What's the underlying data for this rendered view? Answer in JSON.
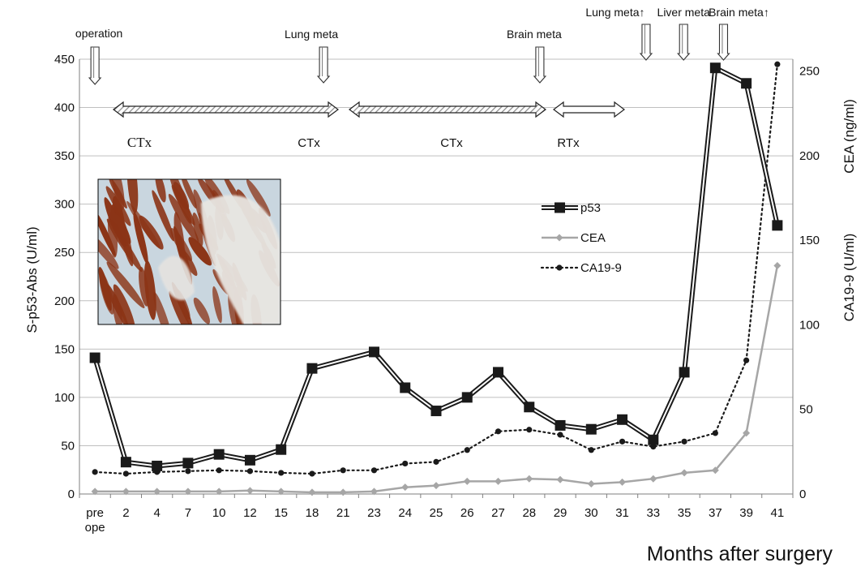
{
  "chart_data": {
    "type": "line",
    "x_label": "Months after surgery",
    "categories": [
      "pre ope",
      "2",
      "4",
      "7",
      "10",
      "12",
      "15",
      "18",
      "21",
      "23",
      "24",
      "25",
      "26",
      "27",
      "28",
      "29",
      "30",
      "31",
      "33",
      "35",
      "37",
      "39",
      "41"
    ],
    "y_left": {
      "label": "S-p53-Abs (U/ml)",
      "range": [
        0,
        450
      ],
      "ticks": [
        "0",
        "50",
        "100",
        "150",
        "200",
        "250",
        "300",
        "350",
        "400",
        "450"
      ]
    },
    "y_right": {
      "labels": [
        "CEA (ng/ml)",
        "CA19-9 (U/ml)"
      ],
      "range": [
        0,
        257
      ],
      "ticks": [
        "0",
        "50",
        "100",
        "150",
        "200",
        "250"
      ]
    },
    "grid": true,
    "legend_position": "right-middle",
    "series": [
      {
        "name": "p53",
        "axis": "left",
        "color": "#1a1a1a",
        "values": [
          141,
          33,
          29,
          32,
          41,
          35,
          46,
          130,
          null,
          147,
          110,
          86,
          100,
          126,
          90,
          71,
          67,
          77,
          56,
          126,
          441,
          425,
          278
        ]
      },
      {
        "name": "CEA",
        "axis": "right",
        "color": "#a6a6a6",
        "values": [
          1.5,
          1.5,
          1.5,
          1.5,
          1.5,
          2,
          1.5,
          1,
          1,
          1.5,
          4,
          5,
          7.5,
          7.5,
          9,
          8.5,
          6,
          7,
          9,
          12.5,
          14,
          36,
          135
        ]
      },
      {
        "name": "CA19-9",
        "axis": "right",
        "color": "#1a1a1a",
        "values": [
          13,
          12,
          13,
          13.5,
          14,
          13.5,
          12.5,
          12,
          14,
          14,
          18,
          19,
          26,
          37,
          38,
          35,
          26,
          31,
          28,
          31,
          36,
          79,
          254
        ]
      }
    ],
    "events": [
      {
        "label": "operation",
        "x": "pre ope"
      },
      {
        "label": "Lung meta",
        "x": "21"
      },
      {
        "label": "Brain meta",
        "x": "29"
      },
      {
        "label": "Lung meta↑",
        "x": "35"
      },
      {
        "label": "Liver meta",
        "x": "37"
      },
      {
        "label": "Brain meta↑",
        "x": "39"
      }
    ],
    "treatments": [
      {
        "label": "CTx",
        "from": "pre ope",
        "to": "21"
      },
      {
        "label": "CTx",
        "from": "21",
        "to": "29"
      },
      {
        "label": "RTx",
        "from": "29",
        "to": "31"
      }
    ]
  },
  "inset": {
    "colors": {
      "stain": "#8b3416",
      "background": "#c9d6df"
    }
  }
}
